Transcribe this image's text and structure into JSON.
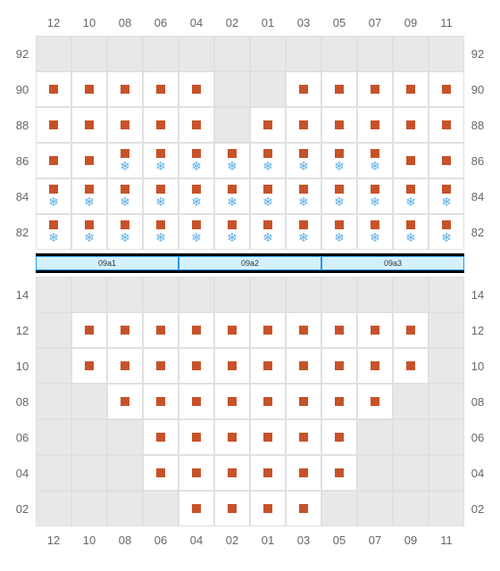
{
  "columns": [
    "12",
    "10",
    "08",
    "06",
    "04",
    "02",
    "01",
    "03",
    "05",
    "07",
    "09",
    "11"
  ],
  "top_block": {
    "row_labels": [
      "92",
      "90",
      "88",
      "86",
      "84",
      "82"
    ],
    "grid": [
      [
        "e",
        "e",
        "e",
        "e",
        "e",
        "e",
        "e",
        "e",
        "e",
        "e",
        "e",
        "e"
      ],
      [
        "s",
        "s",
        "s",
        "s",
        "s",
        "e",
        "e",
        "s",
        "s",
        "s",
        "s",
        "s"
      ],
      [
        "s",
        "s",
        "s",
        "s",
        "s",
        "e",
        "s",
        "s",
        "s",
        "s",
        "s",
        "s"
      ],
      [
        "s",
        "s",
        "f",
        "f",
        "f",
        "f",
        "f",
        "f",
        "f",
        "f",
        "s",
        "s"
      ],
      [
        "f",
        "f",
        "f",
        "f",
        "f",
        "f",
        "f",
        "f",
        "f",
        "f",
        "f",
        "f"
      ],
      [
        "f",
        "f",
        "f",
        "f",
        "f",
        "f",
        "f",
        "f",
        "f",
        "f",
        "f",
        "f"
      ]
    ]
  },
  "divider_labels": [
    "09a1",
    "09a2",
    "09a3"
  ],
  "bottom_block": {
    "row_labels": [
      "14",
      "12",
      "10",
      "08",
      "06",
      "04",
      "02"
    ],
    "grid": [
      [
        "e",
        "e",
        "e",
        "e",
        "e",
        "e",
        "e",
        "e",
        "e",
        "e",
        "e",
        "e"
      ],
      [
        "e",
        "s",
        "s",
        "s",
        "s",
        "s",
        "s",
        "s",
        "s",
        "s",
        "s",
        "e"
      ],
      [
        "e",
        "s",
        "s",
        "s",
        "s",
        "s",
        "s",
        "s",
        "s",
        "s",
        "s",
        "e"
      ],
      [
        "e",
        "e",
        "s",
        "s",
        "s",
        "s",
        "s",
        "s",
        "s",
        "s",
        "e",
        "e"
      ],
      [
        "e",
        "e",
        "e",
        "s",
        "s",
        "s",
        "s",
        "s",
        "s",
        "e",
        "e",
        "e"
      ],
      [
        "e",
        "e",
        "e",
        "s",
        "s",
        "s",
        "s",
        "s",
        "s",
        "e",
        "e",
        "e"
      ],
      [
        "e",
        "e",
        "e",
        "e",
        "s",
        "s",
        "s",
        "s",
        "e",
        "e",
        "e",
        "e"
      ]
    ]
  },
  "styles": {
    "seat_color": "#c7522a",
    "snow_color": "#5aaee8",
    "empty_bg": "#e8e8e8",
    "seat_bg": "#ffffff",
    "border_color": "#e0e0e0",
    "label_color": "#666666",
    "divider_bg": "#d4f1ff",
    "divider_border": "#2196f3"
  }
}
